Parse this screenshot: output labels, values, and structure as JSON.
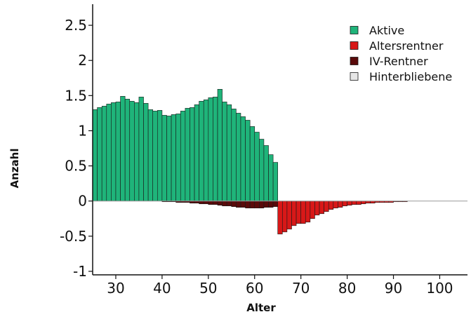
{
  "chart_data": {
    "type": "bar",
    "title": "",
    "xlabel": "Alter",
    "ylabel": "Anzahl",
    "xlim": [
      25,
      106
    ],
    "ylim": [
      -1.05,
      2.8
    ],
    "xticks": [
      30,
      40,
      50,
      60,
      70,
      80,
      90,
      100
    ],
    "yticks": [
      -1,
      -0.5,
      0,
      0.5,
      1,
      1.5,
      2,
      2.5
    ],
    "ytick_labels": [
      "-1",
      "-0.5",
      "0",
      "0.5",
      "1",
      "1.5",
      "2",
      "2.5"
    ],
    "grid": false,
    "legend_position": "top-right",
    "series": [
      {
        "name": "Aktive",
        "color": "#1fb47a",
        "x": [
          25,
          26,
          27,
          28,
          29,
          30,
          31,
          32,
          33,
          34,
          35,
          36,
          37,
          38,
          39,
          40,
          41,
          42,
          43,
          44,
          45,
          46,
          47,
          48,
          49,
          50,
          51,
          52,
          53,
          54,
          55,
          56,
          57,
          58,
          59,
          60,
          61,
          62,
          63,
          64
        ],
        "values": [
          1.3,
          1.33,
          1.35,
          1.38,
          1.4,
          1.41,
          1.49,
          1.45,
          1.42,
          1.4,
          1.48,
          1.39,
          1.3,
          1.28,
          1.29,
          1.22,
          1.21,
          1.23,
          1.24,
          1.28,
          1.32,
          1.33,
          1.37,
          1.42,
          1.44,
          1.47,
          1.48,
          1.59,
          1.41,
          1.37,
          1.31,
          1.25,
          1.2,
          1.15,
          1.06,
          0.98,
          0.88,
          0.79,
          0.66,
          0.55
        ]
      },
      {
        "name": "Altersrentner",
        "color": "#d81818",
        "x": [
          64,
          65,
          66,
          67,
          68,
          69,
          70,
          71,
          72,
          73,
          74,
          75,
          76,
          77,
          78,
          79,
          80,
          81,
          82,
          83,
          84,
          85,
          86,
          87,
          88,
          89,
          90,
          91,
          92
        ],
        "values": [
          -0.02,
          -0.47,
          -0.44,
          -0.4,
          -0.35,
          -0.32,
          -0.32,
          -0.3,
          -0.25,
          -0.2,
          -0.18,
          -0.15,
          -0.12,
          -0.1,
          -0.09,
          -0.07,
          -0.06,
          -0.05,
          -0.05,
          -0.04,
          -0.03,
          -0.03,
          -0.02,
          -0.02,
          -0.02,
          -0.02,
          -0.01,
          -0.01,
          -0.01
        ]
      },
      {
        "name": "IV-Rentner",
        "color": "#5a0a0a",
        "x": [
          40,
          41,
          42,
          43,
          44,
          45,
          46,
          47,
          48,
          49,
          50,
          51,
          52,
          53,
          54,
          55,
          56,
          57,
          58,
          59,
          60,
          61,
          62,
          63,
          64
        ],
        "values": [
          -0.01,
          -0.01,
          -0.01,
          -0.02,
          -0.02,
          -0.02,
          -0.03,
          -0.03,
          -0.04,
          -0.04,
          -0.05,
          -0.05,
          -0.06,
          -0.07,
          -0.07,
          -0.08,
          -0.09,
          -0.09,
          -0.1,
          -0.1,
          -0.1,
          -0.1,
          -0.09,
          -0.09,
          -0.08
        ]
      },
      {
        "name": "Hinterbliebene",
        "color": "#e6e6e6",
        "x": [],
        "values": []
      }
    ]
  }
}
